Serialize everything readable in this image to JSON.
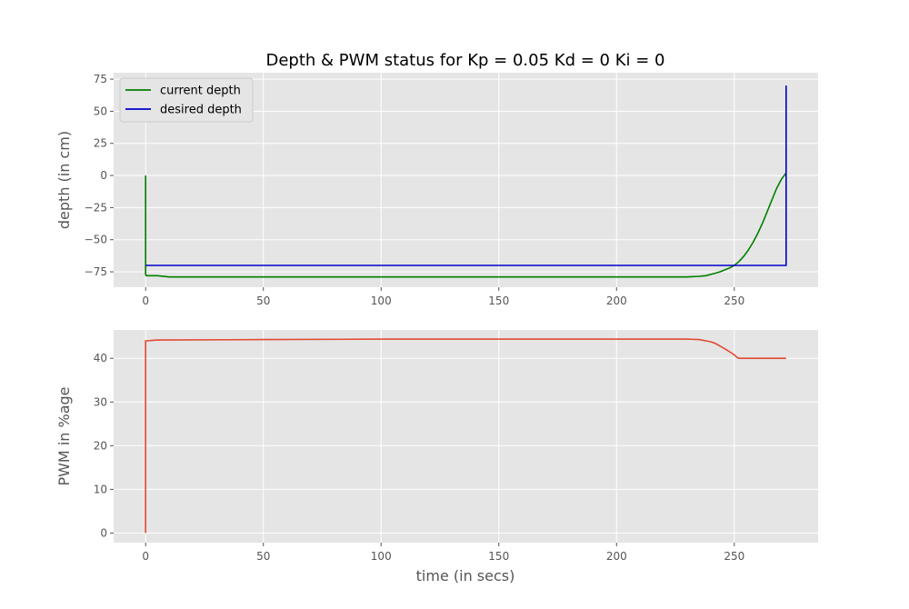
{
  "chart_data": [
    {
      "type": "line",
      "title": "Depth & PWM status for Kp = 0.05 Kd = 0 Ki = 0",
      "xlabel": "",
      "ylabel": "depth (in cm)",
      "xlim": [
        -13.6,
        285.6
      ],
      "ylim": [
        -87,
        80
      ],
      "xticks": [
        0,
        50,
        100,
        150,
        200,
        250
      ],
      "yticks": [
        -75,
        -50,
        -25,
        0,
        25,
        50,
        75
      ],
      "grid": true,
      "legend": "top-left",
      "series": [
        {
          "name": "current depth",
          "color": "#008000",
          "x": [
            0,
            0,
            0.3,
            2,
            5,
            10,
            50,
            100,
            150,
            200,
            230,
            235,
            238,
            240,
            242,
            244,
            246,
            248,
            250,
            252,
            254,
            256,
            258,
            260,
            262,
            264,
            266,
            268,
            270,
            272
          ],
          "y": [
            0,
            -77,
            -78,
            -78,
            -78,
            -79,
            -79,
            -79,
            -79,
            -79,
            -79,
            -78.5,
            -78,
            -77,
            -76,
            -75,
            -73.5,
            -72,
            -70,
            -67,
            -63,
            -58,
            -52,
            -45,
            -37,
            -28,
            -19,
            -10,
            -3,
            2
          ]
        },
        {
          "name": "desired depth",
          "color": "#0000cc",
          "x": [
            0,
            272,
            272,
            272
          ],
          "y": [
            -70,
            -70,
            -70,
            70
          ]
        }
      ]
    },
    {
      "type": "line",
      "title": "",
      "xlabel": "time (in secs)",
      "ylabel": "PWM in %age",
      "xlim": [
        -13.6,
        285.6
      ],
      "ylim": [
        -2.2,
        46.5
      ],
      "xticks": [
        0,
        50,
        100,
        150,
        200,
        250
      ],
      "yticks": [
        0,
        10,
        20,
        30,
        40
      ],
      "grid": true,
      "series": [
        {
          "color": "#e24a33",
          "x": [
            0,
            0,
            0.5,
            5,
            50,
            100,
            150,
            200,
            230,
            235,
            238,
            240,
            242,
            244,
            246,
            248,
            250,
            251,
            252,
            260,
            272
          ],
          "y": [
            0,
            44,
            44,
            44.2,
            44.3,
            44.4,
            44.4,
            44.4,
            44.4,
            44.3,
            44,
            43.8,
            43.4,
            42.8,
            42.2,
            41.5,
            40.8,
            40.3,
            40,
            40,
            40
          ]
        }
      ]
    }
  ]
}
